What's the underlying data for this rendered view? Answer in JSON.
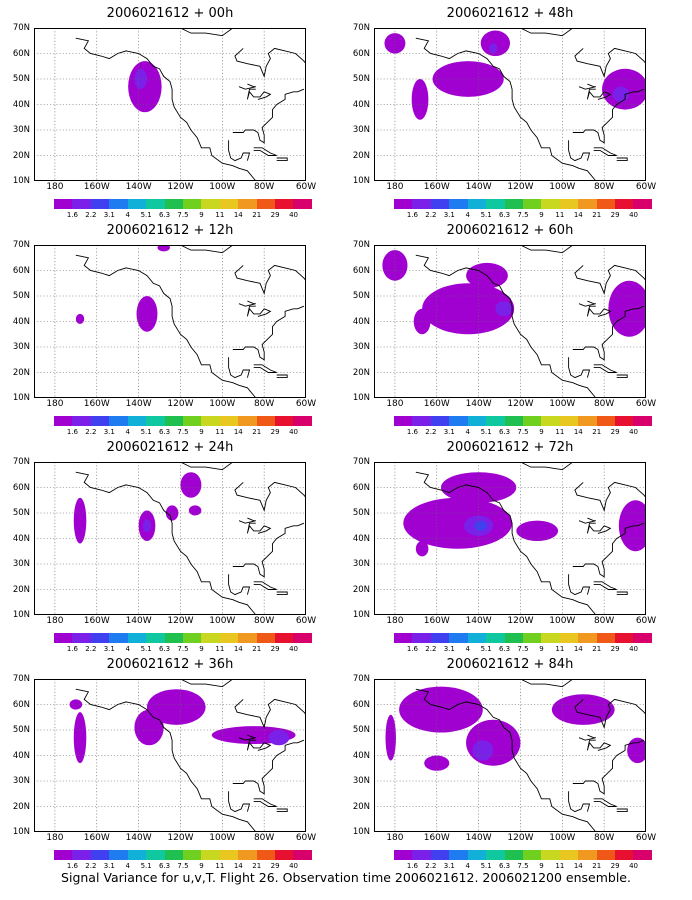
{
  "chart_data": {
    "type": "heatmap",
    "projection": "lat-lon",
    "lon_range": [
      -190,
      -60
    ],
    "lat_range": [
      10,
      70
    ],
    "grid": true,
    "ytick_labels": [
      "70N",
      "60N",
      "50N",
      "40N",
      "30N",
      "20N",
      "10N"
    ],
    "xtick_labels": [
      "180",
      "160W",
      "140W",
      "120W",
      "100W",
      "80W",
      "60W"
    ],
    "xtick_lons": [
      -180,
      -160,
      -140,
      -120,
      -100,
      -80,
      -60
    ],
    "colorbar": {
      "levels": [
        "1.6",
        "2.2",
        "3.1",
        "4",
        "5.1",
        "6.3",
        "7.5",
        "9",
        "11",
        "14",
        "21",
        "29",
        "40"
      ],
      "colors": [
        "#a000d0",
        "#7a20e8",
        "#4040f0",
        "#1e7cf0",
        "#10b0d8",
        "#10c8a0",
        "#20c050",
        "#70d020",
        "#c8d820",
        "#e8c820",
        "#f09820",
        "#f05818",
        "#e81030",
        "#d8006a"
      ]
    },
    "panels": [
      {
        "title": "2006021612 + 00h",
        "col": 0,
        "row": 0,
        "blobs": [
          {
            "lon": -137,
            "lat": 47,
            "rx": 8,
            "ry": 10,
            "level": 0
          },
          {
            "lon": -139,
            "lat": 50,
            "rx": 3,
            "ry": 4,
            "level": 1
          }
        ]
      },
      {
        "title": "2006021612 + 12h",
        "col": 0,
        "row": 1,
        "blobs": [
          {
            "lon": -136,
            "lat": 43,
            "rx": 5,
            "ry": 7,
            "level": 0
          },
          {
            "lon": -168,
            "lat": 41,
            "rx": 2,
            "ry": 2,
            "level": 0
          },
          {
            "lon": -128,
            "lat": 69,
            "rx": 3,
            "ry": 1.5,
            "level": 0
          }
        ]
      },
      {
        "title": "2006021612 + 24h",
        "col": 0,
        "row": 2,
        "blobs": [
          {
            "lon": -168,
            "lat": 47,
            "rx": 3,
            "ry": 9,
            "level": 0
          },
          {
            "lon": -136,
            "lat": 45,
            "rx": 4,
            "ry": 6,
            "level": 0
          },
          {
            "lon": -136,
            "lat": 45,
            "rx": 2,
            "ry": 2.5,
            "level": 1
          },
          {
            "lon": -124,
            "lat": 50,
            "rx": 3,
            "ry": 3,
            "level": 0
          },
          {
            "lon": -115,
            "lat": 61,
            "rx": 5,
            "ry": 5,
            "level": 0
          },
          {
            "lon": -113,
            "lat": 51,
            "rx": 3,
            "ry": 2,
            "level": 0
          }
        ]
      },
      {
        "title": "2006021612 + 36h",
        "col": 0,
        "row": 3,
        "blobs": [
          {
            "lon": -168,
            "lat": 47,
            "rx": 3,
            "ry": 10,
            "level": 0
          },
          {
            "lon": -170,
            "lat": 60,
            "rx": 3,
            "ry": 2,
            "level": 0
          },
          {
            "lon": -135,
            "lat": 51,
            "rx": 7,
            "ry": 7,
            "level": 0
          },
          {
            "lon": -122,
            "lat": 59,
            "rx": 14,
            "ry": 7,
            "level": 0
          },
          {
            "lon": -85,
            "lat": 48,
            "rx": 20,
            "ry": 3.5,
            "level": 0
          },
          {
            "lon": -73,
            "lat": 47,
            "rx": 5,
            "ry": 3,
            "level": 1
          }
        ]
      },
      {
        "title": "2006021612 + 48h",
        "col": 1,
        "row": 0,
        "blobs": [
          {
            "lon": -180,
            "lat": 64,
            "rx": 5,
            "ry": 4,
            "level": 0
          },
          {
            "lon": -168,
            "lat": 42,
            "rx": 4,
            "ry": 8,
            "level": 0
          },
          {
            "lon": -145,
            "lat": 50,
            "rx": 17,
            "ry": 7,
            "level": 0
          },
          {
            "lon": -132,
            "lat": 64,
            "rx": 7,
            "ry": 5,
            "level": 0
          },
          {
            "lon": -133,
            "lat": 62,
            "rx": 2,
            "ry": 2,
            "level": 1
          },
          {
            "lon": -70,
            "lat": 46,
            "rx": 11,
            "ry": 8,
            "level": 0
          },
          {
            "lon": -72,
            "lat": 44,
            "rx": 4,
            "ry": 3,
            "level": 1
          }
        ]
      },
      {
        "title": "2006021612 + 60h",
        "col": 1,
        "row": 1,
        "blobs": [
          {
            "lon": -180,
            "lat": 62,
            "rx": 6,
            "ry": 6,
            "level": 0
          },
          {
            "lon": -145,
            "lat": 45,
            "rx": 22,
            "ry": 10,
            "level": 0
          },
          {
            "lon": -136,
            "lat": 58,
            "rx": 10,
            "ry": 5,
            "level": 0
          },
          {
            "lon": -128,
            "lat": 45,
            "rx": 4,
            "ry": 3,
            "level": 1
          },
          {
            "lon": -167,
            "lat": 40,
            "rx": 4,
            "ry": 5,
            "level": 0
          },
          {
            "lon": -68,
            "lat": 45,
            "rx": 10,
            "ry": 11,
            "level": 0
          }
        ]
      },
      {
        "title": "2006021612 + 72h",
        "col": 1,
        "row": 2,
        "blobs": [
          {
            "lon": -150,
            "lat": 46,
            "rx": 26,
            "ry": 10,
            "level": 0
          },
          {
            "lon": -140,
            "lat": 60,
            "rx": 18,
            "ry": 6,
            "level": 0
          },
          {
            "lon": -140,
            "lat": 45,
            "rx": 7,
            "ry": 4,
            "level": 1
          },
          {
            "lon": -139,
            "lat": 45,
            "rx": 3,
            "ry": 2,
            "level": 2
          },
          {
            "lon": -112,
            "lat": 43,
            "rx": 10,
            "ry": 4,
            "level": 0
          },
          {
            "lon": -167,
            "lat": 36,
            "rx": 3,
            "ry": 3,
            "level": 0
          },
          {
            "lon": -65,
            "lat": 45,
            "rx": 8,
            "ry": 10,
            "level": 0
          }
        ]
      },
      {
        "title": "2006021612 + 84h",
        "col": 1,
        "row": 3,
        "blobs": [
          {
            "lon": -158,
            "lat": 58,
            "rx": 20,
            "ry": 9,
            "level": 0
          },
          {
            "lon": -133,
            "lat": 45,
            "rx": 13,
            "ry": 9,
            "level": 0
          },
          {
            "lon": -138,
            "lat": 42,
            "rx": 5,
            "ry": 4,
            "level": 1
          },
          {
            "lon": -182,
            "lat": 47,
            "rx": 2.5,
            "ry": 9,
            "level": 0
          },
          {
            "lon": -160,
            "lat": 37,
            "rx": 6,
            "ry": 3,
            "level": 0
          },
          {
            "lon": -90,
            "lat": 58,
            "rx": 15,
            "ry": 6,
            "level": 0
          },
          {
            "lon": -64,
            "lat": 42,
            "rx": 5,
            "ry": 5,
            "level": 0
          }
        ]
      }
    ]
  },
  "footer": "Signal Variance for u,v,T. Flight 26. Observation time 2006021612. 2006021200 ensemble."
}
